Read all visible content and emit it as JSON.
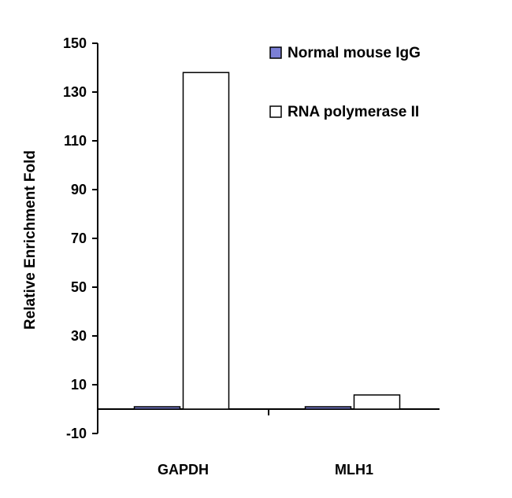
{
  "chart_data": {
    "type": "bar",
    "categories": [
      "GAPDH",
      "MLH1"
    ],
    "series": [
      {
        "name": "Normal mouse IgG",
        "values": [
          0.8,
          0.8
        ],
        "color": "#7b7fd6"
      },
      {
        "name": "RNA polymerase II",
        "values": [
          138,
          5.8
        ],
        "color": "#ffffff"
      }
    ],
    "ylabel": "Relative Enrichment Fold",
    "xlabel": "",
    "ylim": [
      -10,
      150
    ],
    "yticks": [
      -10,
      10,
      30,
      50,
      70,
      90,
      110,
      130,
      150
    ],
    "baseline": 0,
    "grid": false,
    "legend_position": "top-right"
  }
}
